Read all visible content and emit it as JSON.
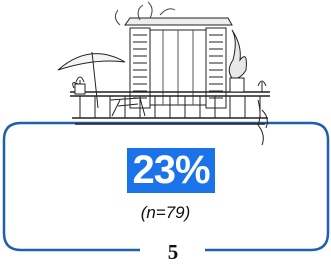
{
  "card": {
    "value": "23%",
    "sample": "(n=79)",
    "page": "5"
  }
}
